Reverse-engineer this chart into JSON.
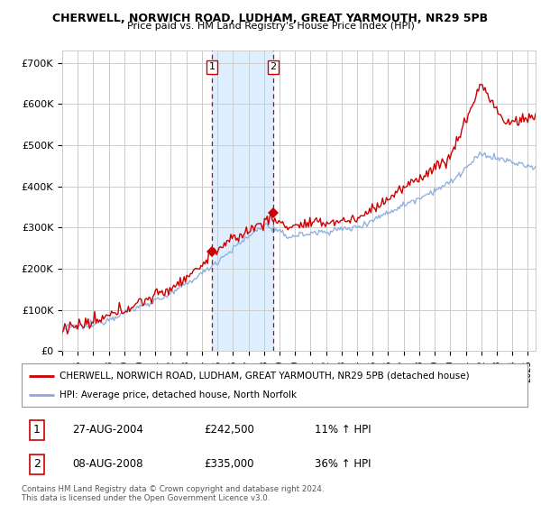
{
  "title": "CHERWELL, NORWICH ROAD, LUDHAM, GREAT YARMOUTH, NR29 5PB",
  "subtitle": "Price paid vs. HM Land Registry's House Price Index (HPI)",
  "ylabel_ticks": [
    "£0",
    "£100K",
    "£200K",
    "£300K",
    "£400K",
    "£500K",
    "£600K",
    "£700K"
  ],
  "ytick_values": [
    0,
    100000,
    200000,
    300000,
    400000,
    500000,
    600000,
    700000
  ],
  "ylim": [
    0,
    730000
  ],
  "xlim_start": 1995.0,
  "xlim_end": 2025.5,
  "background_color": "#ffffff",
  "plot_background": "#ffffff",
  "grid_color": "#cccccc",
  "sale1_x": 2004.65,
  "sale1_y": 242500,
  "sale1_label": "1",
  "sale1_date": "27-AUG-2004",
  "sale1_price": "£242,500",
  "sale1_hpi": "11% ↑ HPI",
  "sale2_x": 2008.6,
  "sale2_y": 335000,
  "sale2_label": "2",
  "sale2_date": "08-AUG-2008",
  "sale2_price": "£335,000",
  "sale2_hpi": "36% ↑ HPI",
  "vline_color": "#cc0000",
  "shade_color": "#ddeeff",
  "legend_line1": "CHERWELL, NORWICH ROAD, LUDHAM, GREAT YARMOUTH, NR29 5PB (detached house)",
  "legend_line2": "HPI: Average price, detached house, North Norfolk",
  "footer": "Contains HM Land Registry data © Crown copyright and database right 2024.\nThis data is licensed under the Open Government Licence v3.0.",
  "hpi_color": "#88aadd",
  "price_color": "#cc0000"
}
